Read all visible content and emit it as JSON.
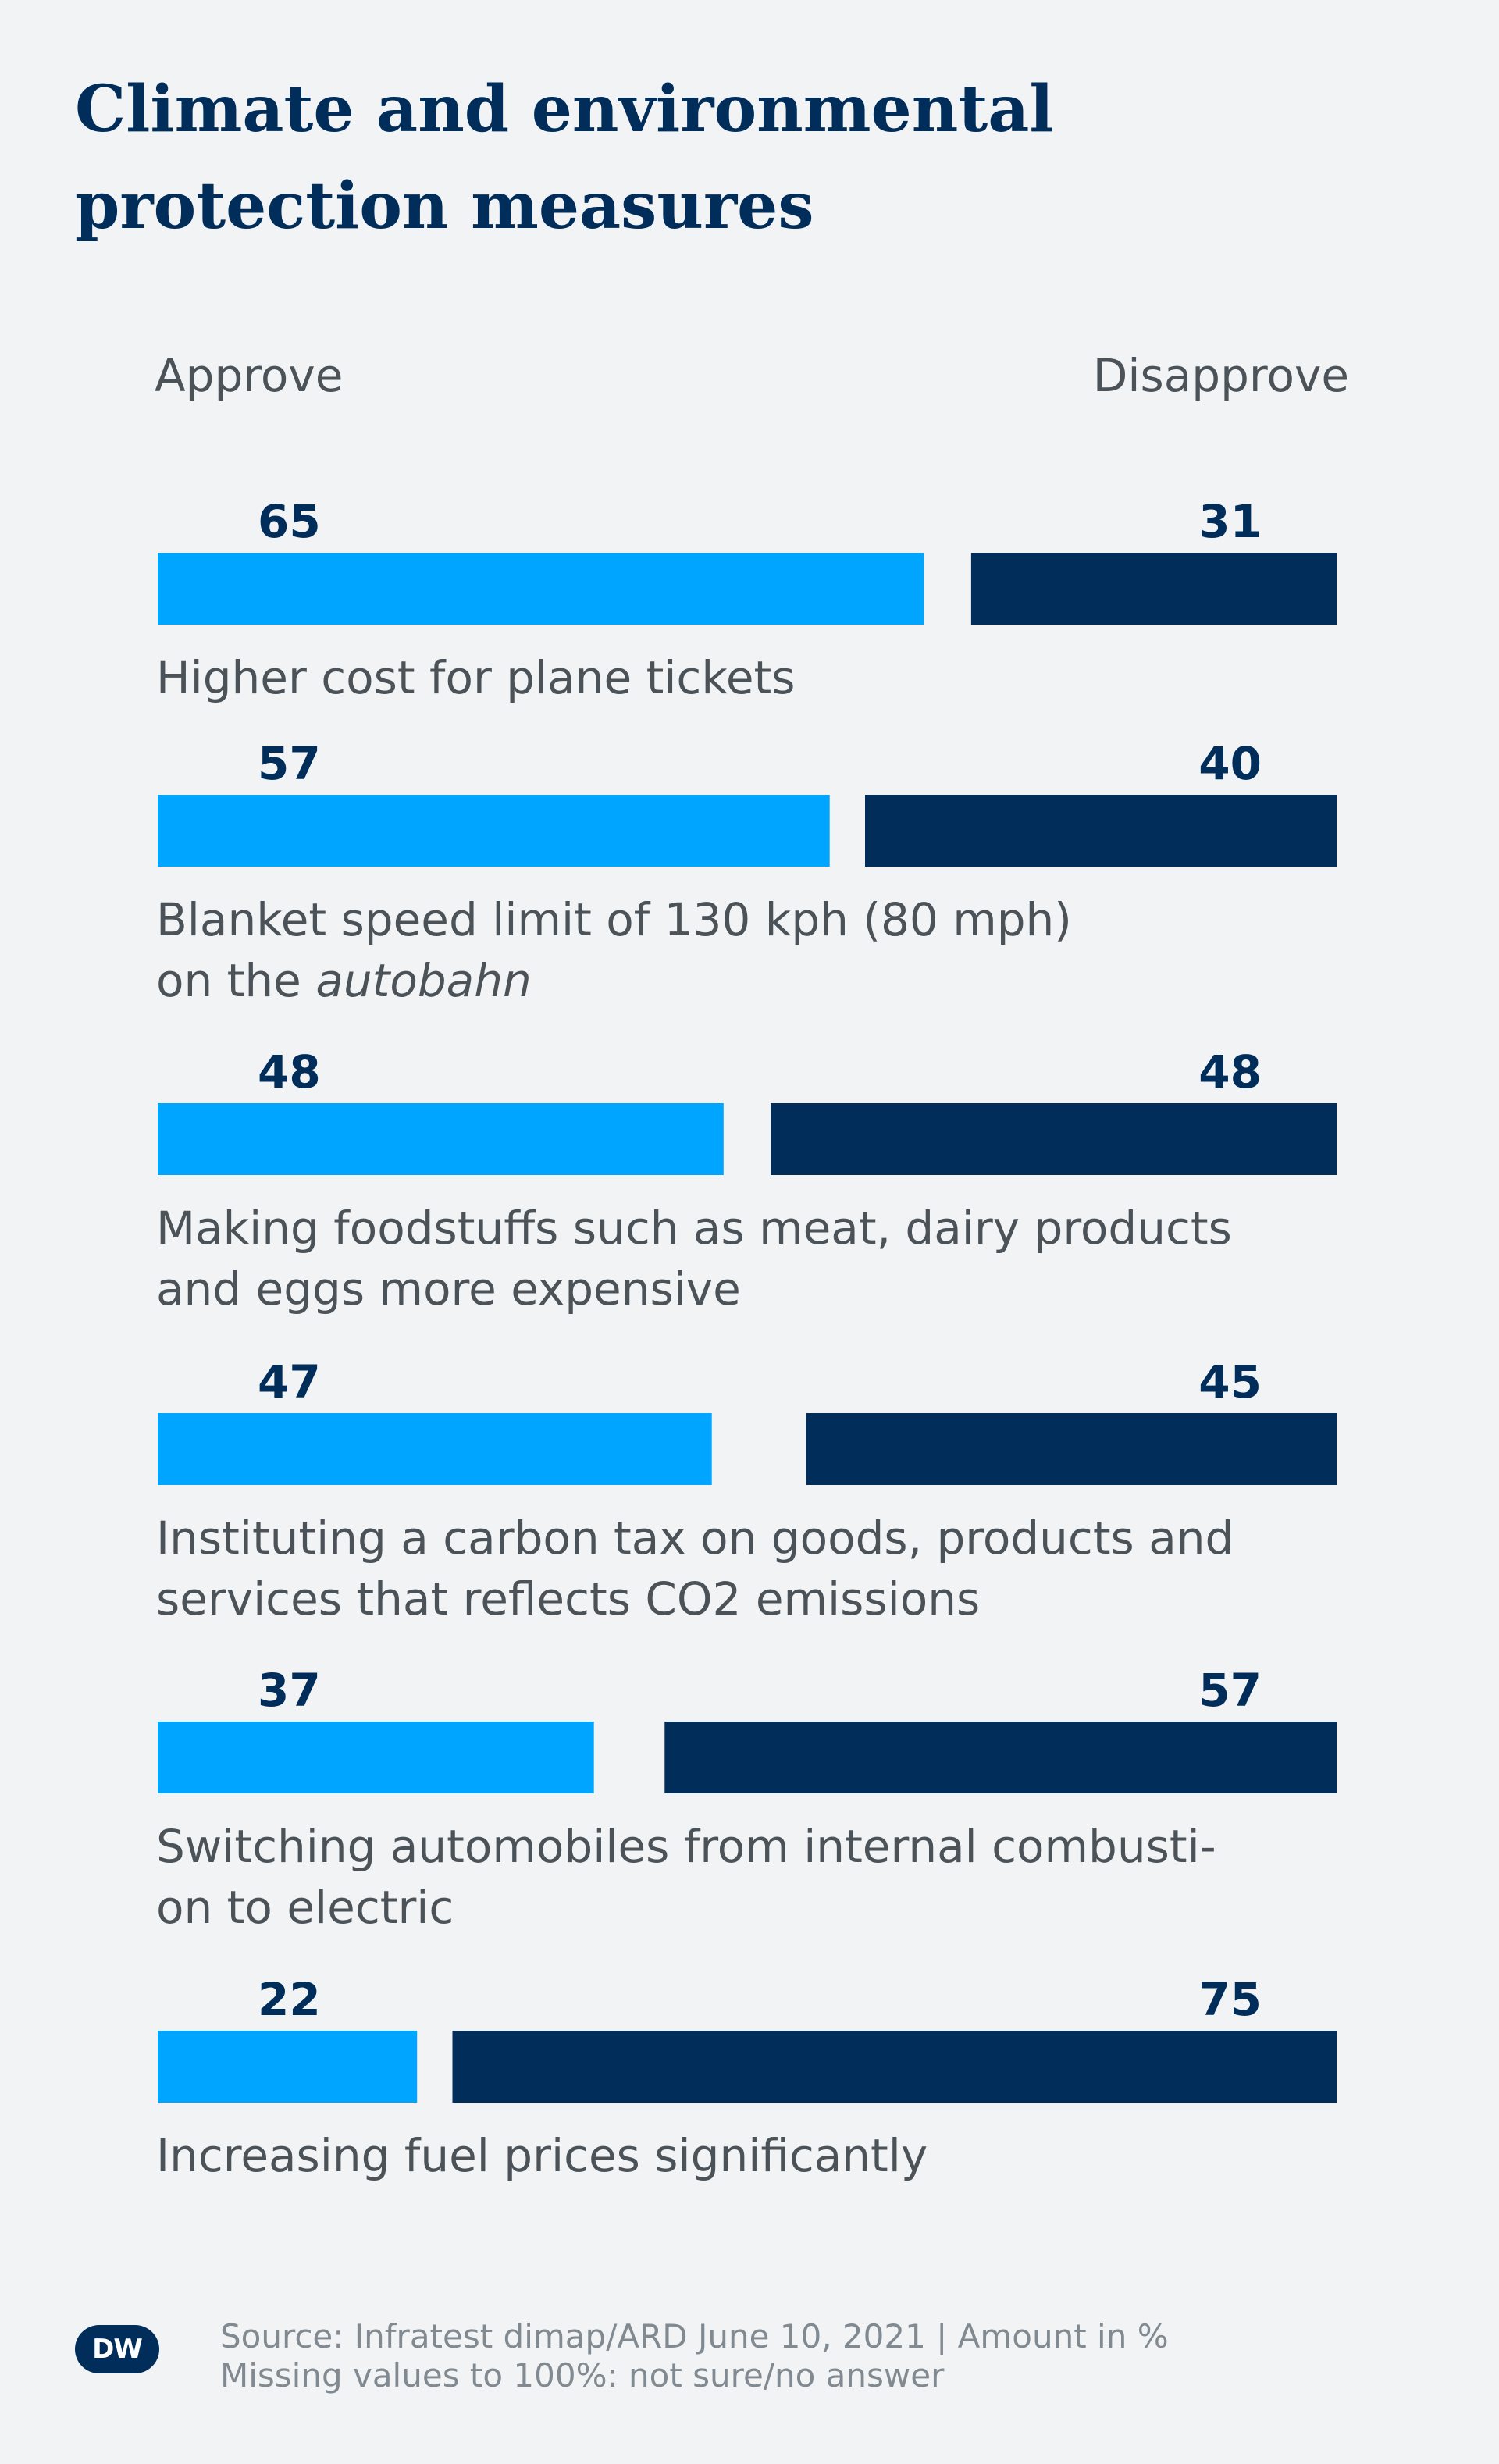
{
  "title_line1": "Climate and environmental",
  "title_line2": "protection measures",
  "approve_label": "Approve",
  "disapprove_label": "Disapprove",
  "colors": {
    "approve": "#00a5ff",
    "disapprove": "#002d5a",
    "background": "#f1f3f5",
    "label_text": "#4b5258"
  },
  "chart_data": {
    "type": "bar",
    "orientation": "horizontal-diverging",
    "unit": "%",
    "xlim": [
      0,
      100
    ],
    "categories": [
      [
        "Higher cost for plane tickets"
      ],
      [
        "Blanket speed limit of 130 kph (80 mph)",
        "on the autobahn"
      ],
      [
        "Making foodstuffs such as meat, dairy products",
        "and eggs more expensive"
      ],
      [
        "Instituting a carbon tax on goods, products and",
        "services that reflects CO2 emissions"
      ],
      [
        "Switching automobiles from internal combusti-",
        "on to electric"
      ],
      [
        "Increasing fuel prices significantly"
      ]
    ],
    "series": [
      {
        "name": "Approve",
        "values": [
          65,
          57,
          48,
          47,
          37,
          22
        ]
      },
      {
        "name": "Disapprove",
        "values": [
          31,
          40,
          48,
          45,
          57,
          75
        ]
      }
    ],
    "legend": "top"
  },
  "source_line1": "Source: Infratest dimap/ARD June 10, 2021 | Amount in %",
  "source_line2": "Missing values to 100%: not sure/no answer",
  "logo_text": "DW"
}
